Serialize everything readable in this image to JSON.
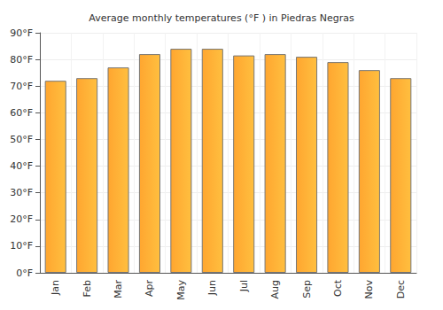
{
  "chart_data": {
    "type": "bar",
    "title": "Average monthly temperatures (°F ) in Piedras Negras",
    "categories": [
      "Jan",
      "Feb",
      "Mar",
      "Apr",
      "May",
      "Jun",
      "Jul",
      "Aug",
      "Sep",
      "Oct",
      "Nov",
      "Dec"
    ],
    "values": [
      72,
      73,
      77,
      82,
      84,
      84,
      81.5,
      82,
      81,
      79,
      76,
      73
    ],
    "color": "#ffa630",
    "ylim": [
      0,
      90
    ],
    "yticks": [
      {
        "value": 0,
        "label": "0°F"
      },
      {
        "value": 10,
        "label": "10°F"
      },
      {
        "value": 20,
        "label": "20°F"
      },
      {
        "value": 30,
        "label": "30°F"
      },
      {
        "value": 40,
        "label": "40°F"
      },
      {
        "value": 50,
        "label": "50°F"
      },
      {
        "value": 60,
        "label": "60°F"
      },
      {
        "value": 70,
        "label": "70°F"
      },
      {
        "value": 80,
        "label": "80°F"
      },
      {
        "value": 90,
        "label": "90°F"
      }
    ],
    "grid": true
  }
}
